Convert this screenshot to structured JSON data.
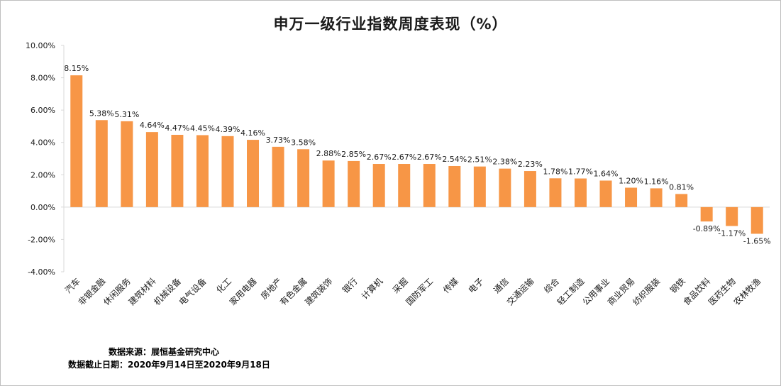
{
  "chart_data": {
    "type": "bar",
    "title": "申万一级行业指数周度表现（%）",
    "categories": [
      "汽车",
      "非银金融",
      "休闲服务",
      "建筑材料",
      "机械设备",
      "电气设备",
      "化工",
      "家用电器",
      "房地产",
      "有色金属",
      "建筑装饰",
      "银行",
      "计算机",
      "采掘",
      "国防军工",
      "传媒",
      "电子",
      "通信",
      "交通运输",
      "综合",
      "轻工制造",
      "公用事业",
      "商业贸易",
      "纺织服装",
      "钢铁",
      "食品饮料",
      "医药生物",
      "农林牧渔"
    ],
    "values": [
      8.15,
      5.38,
      5.31,
      4.64,
      4.47,
      4.45,
      4.39,
      4.16,
      3.73,
      3.58,
      2.88,
      2.85,
      2.67,
      2.67,
      2.67,
      2.54,
      2.51,
      2.38,
      2.23,
      1.78,
      1.77,
      1.64,
      1.2,
      1.16,
      0.81,
      -0.89,
      -1.17,
      -1.65
    ],
    "value_labels": [
      "8.15%",
      "5.38%",
      "5.31%",
      "4.64%",
      "4.47%",
      "4.45%",
      "4.39%",
      "4.16%",
      "3.73%",
      "3.58%",
      "2.88%",
      "2.85%",
      "2.67%",
      "2.67%",
      "2.67%",
      "2.54%",
      "2.51%",
      "2.38%",
      "2.23%",
      "1.78%",
      "1.77%",
      "1.64%",
      "1.20%",
      "1.16%",
      "0.81%",
      "-0.89%",
      "-1.17%",
      "-1.65%"
    ],
    "ylim": [
      -4,
      10
    ],
    "yticks": [
      -4,
      -2,
      0,
      2,
      4,
      6,
      8,
      10
    ],
    "ytick_labels": [
      "-4.00%",
      "-2.00%",
      "0.00%",
      "2.00%",
      "4.00%",
      "6.00%",
      "8.00%",
      "10.00%"
    ],
    "xlabel": "",
    "ylabel": "",
    "grid": false,
    "legend": "none",
    "bar_color": "#f79646"
  },
  "notes": {
    "source": "数据来源：展恒基金研究中心",
    "date_range": "数据截止日期：2020年9月14日至2020年9月18日"
  }
}
